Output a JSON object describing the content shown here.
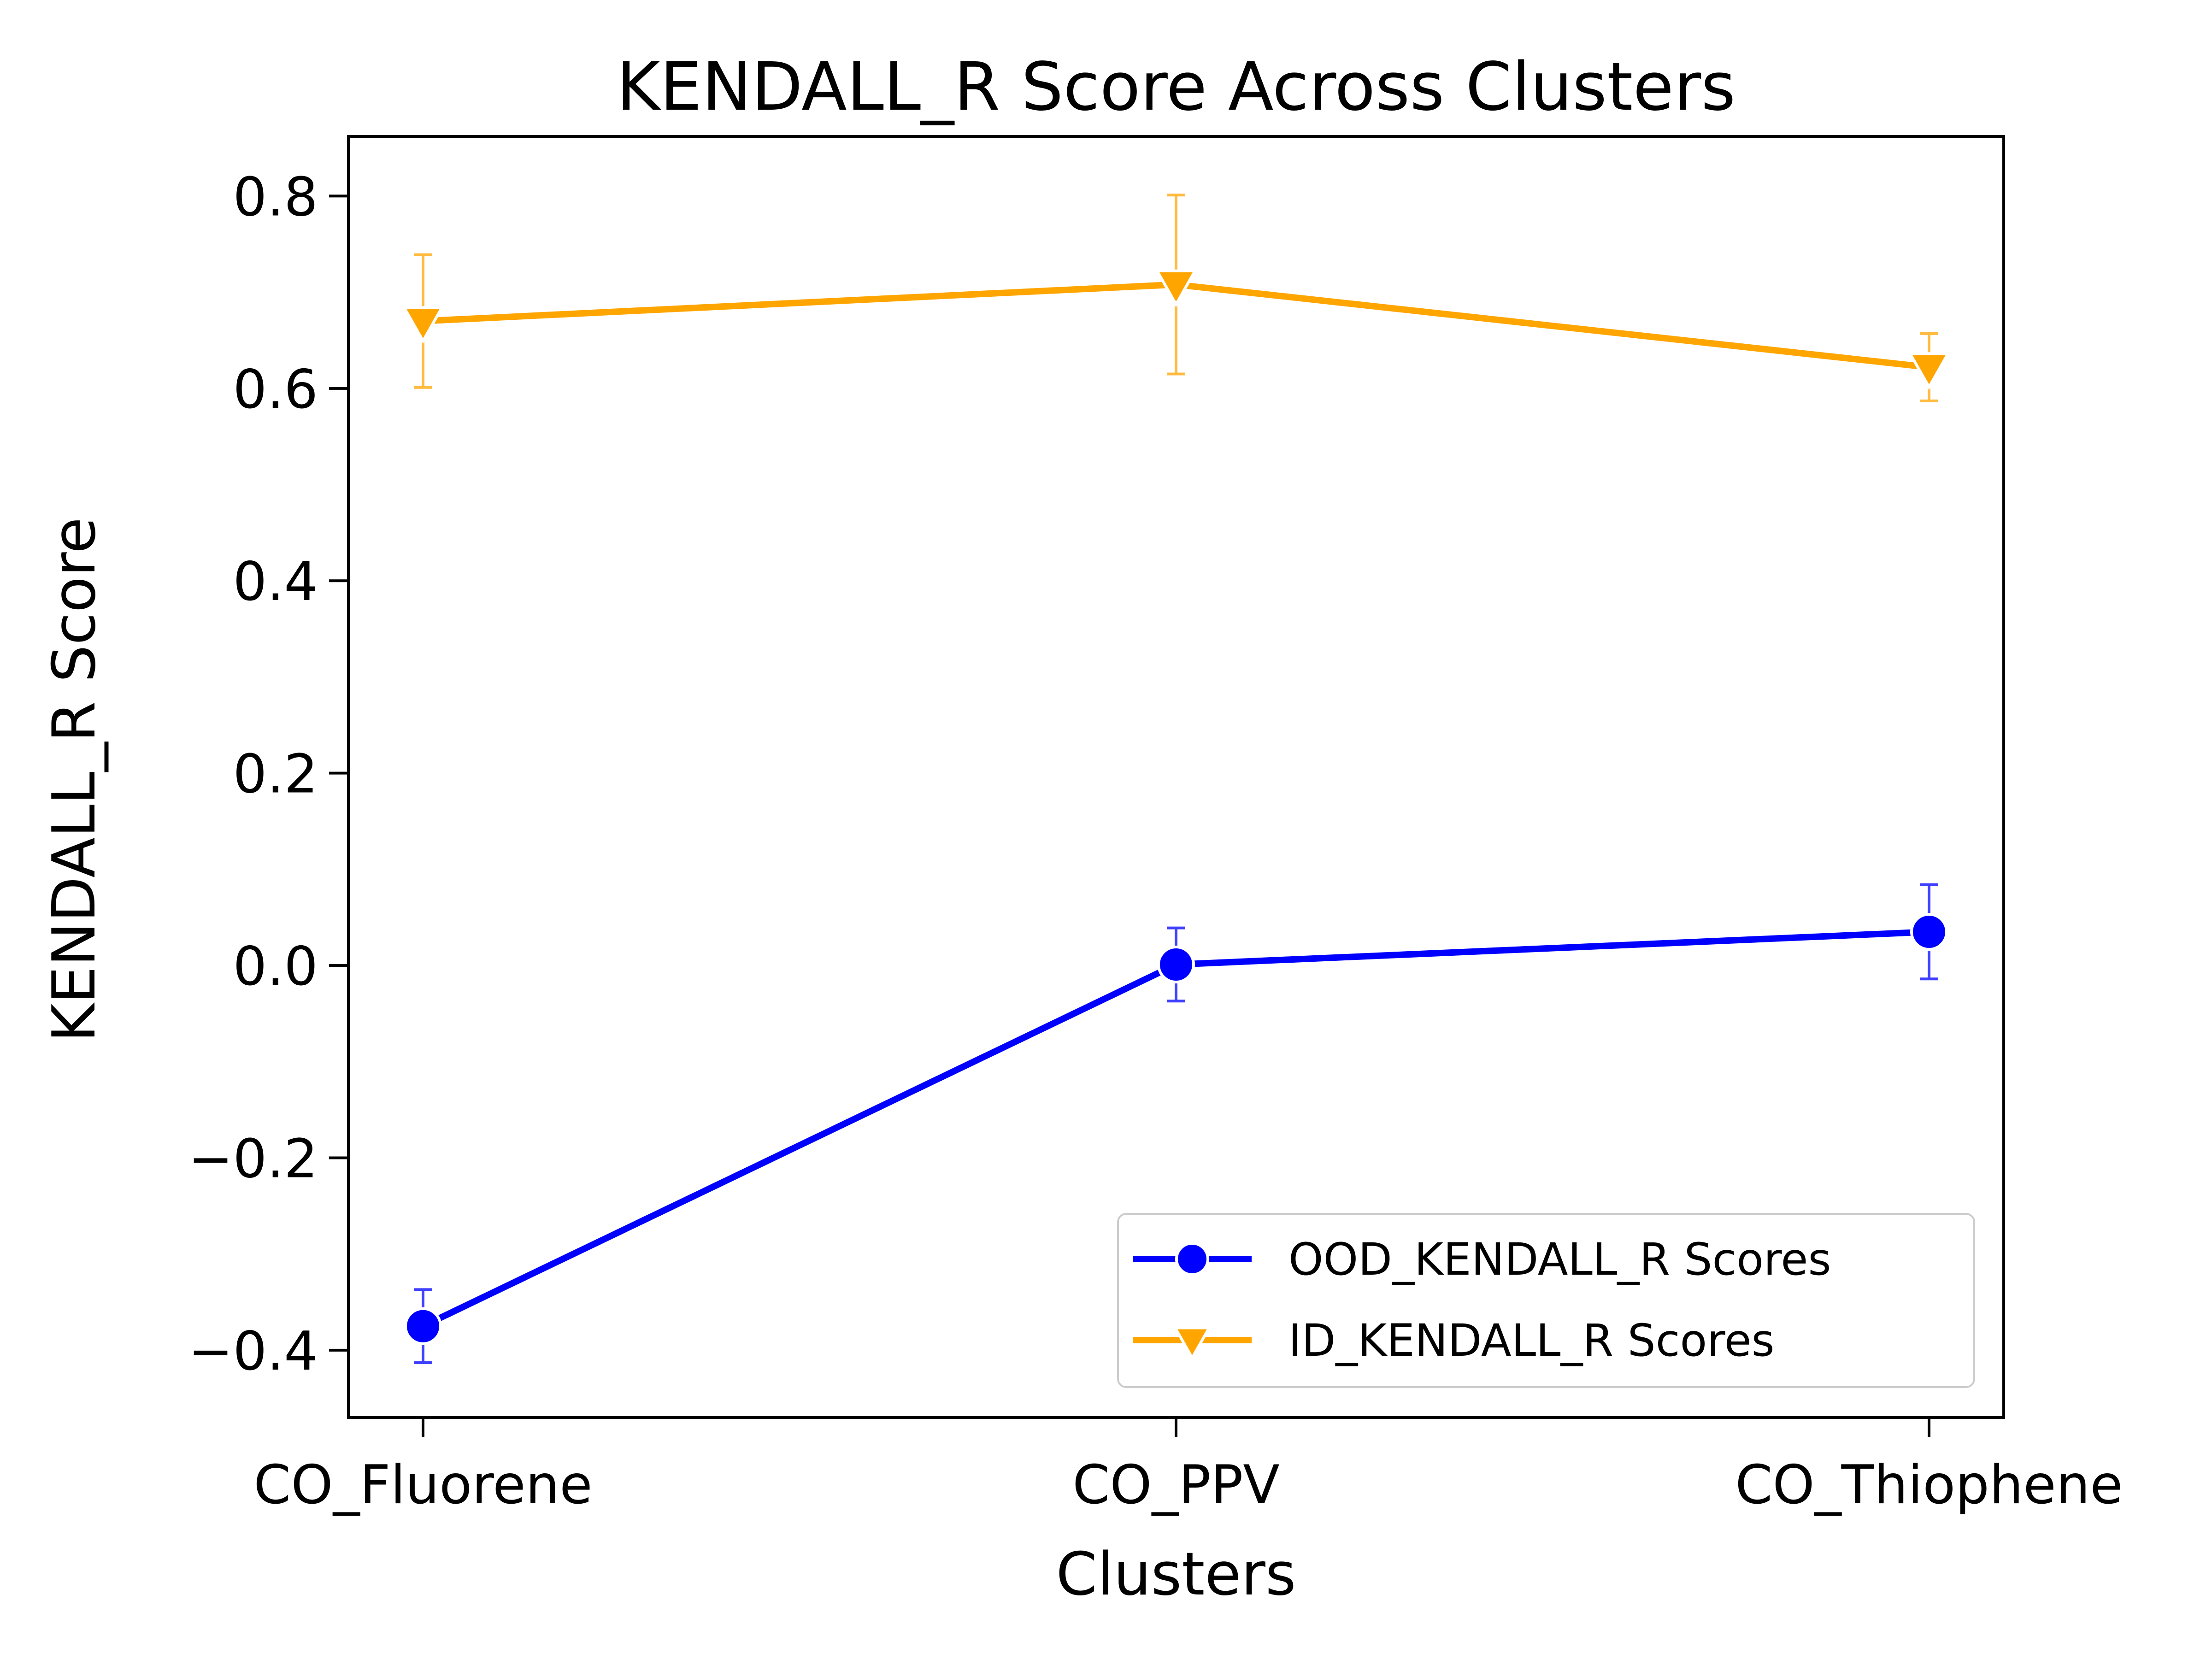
{
  "chart_data": {
    "type": "line",
    "title": "KENDALL_R Score Across Clusters",
    "xlabel": "Clusters",
    "ylabel": "KENDALL_R Score",
    "categories": [
      "CO_Fluorene",
      "CO_PPV",
      "CO_Thiophene"
    ],
    "ylim": [
      -0.47,
      0.862
    ],
    "yticks": [
      -0.4,
      -0.2,
      0.0,
      0.2,
      0.4,
      0.6,
      0.8
    ],
    "ytick_labels": [
      "−0.4",
      "−0.2",
      "0.0",
      "0.2",
      "0.4",
      "0.6",
      "0.8"
    ],
    "grid": false,
    "legend_position": "lower-right",
    "series": [
      {
        "name": "OOD_KENDALL_R Scores",
        "values": [
          -0.375,
          0.001,
          0.035
        ],
        "error_low": [
          -0.413,
          -0.037,
          -0.014
        ],
        "error_high": [
          -0.337,
          0.039,
          0.084
        ],
        "color": "#0000ff",
        "marker": "circle"
      },
      {
        "name": "ID_KENDALL_R Scores",
        "values": [
          0.67,
          0.708,
          0.622
        ],
        "error_low": [
          0.601,
          0.615,
          0.587
        ],
        "error_high": [
          0.739,
          0.801,
          0.657
        ],
        "color": "#ffa500",
        "marker": "triangle-down"
      }
    ]
  }
}
